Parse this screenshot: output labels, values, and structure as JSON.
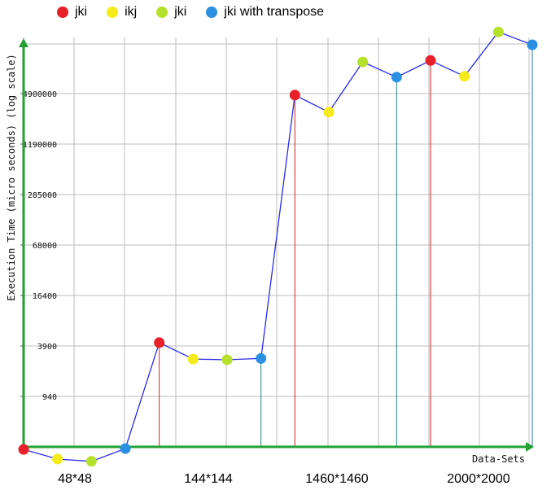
{
  "legend": [
    {
      "label": "jki",
      "color": "#e8202a"
    },
    {
      "label": "ikj",
      "color": "#f5eb1a"
    },
    {
      "label": "jki",
      "color": "#b5e12b"
    },
    {
      "label": "jki with transpose",
      "color": "#2b8fe2"
    }
  ],
  "chart_data": {
    "type": "line",
    "ylabel": "Execution Time (micro seconds) (log scale)",
    "xlabel": "Data-Sets",
    "yscale": "log",
    "yticks": [
      "940",
      "3900",
      "16400",
      "68000",
      "285000",
      "1190000",
      "4900000"
    ],
    "ytick_values": [
      940,
      3900,
      16400,
      68000,
      285000,
      1190000,
      4900000
    ],
    "categories": [
      "48*48",
      "144*144",
      "1460*1460",
      "2000*2000"
    ],
    "points": [
      {
        "series": 0,
        "category": "48*48",
        "y": 210
      },
      {
        "series": 1,
        "category": "48*48",
        "y": 160
      },
      {
        "series": 2,
        "category": "48*48",
        "y": 150
      },
      {
        "series": 3,
        "category": "48*48",
        "y": 215
      },
      {
        "series": 0,
        "category": "144*144",
        "y": 4300
      },
      {
        "series": 1,
        "category": "144*144",
        "y": 2700
      },
      {
        "series": 2,
        "category": "144*144",
        "y": 2650
      },
      {
        "series": 3,
        "category": "144*144",
        "y": 2750
      },
      {
        "series": 0,
        "category": "1460*1460",
        "y": 4700000
      },
      {
        "series": 1,
        "category": "1460*1460",
        "y": 2900000
      },
      {
        "series": 2,
        "category": "1460*1460",
        "y": 12000000
      },
      {
        "series": 3,
        "category": "1460*1460",
        "y": 7800000
      },
      {
        "series": 0,
        "category": "2000*2000",
        "y": 12500000
      },
      {
        "series": 1,
        "category": "2000*2000",
        "y": 8000000
      },
      {
        "series": 2,
        "category": "2000*2000",
        "y": 28000000
      },
      {
        "series": 3,
        "category": "2000*2000",
        "y": 19500000
      }
    ],
    "grid": true,
    "legend_position": "top-left"
  }
}
